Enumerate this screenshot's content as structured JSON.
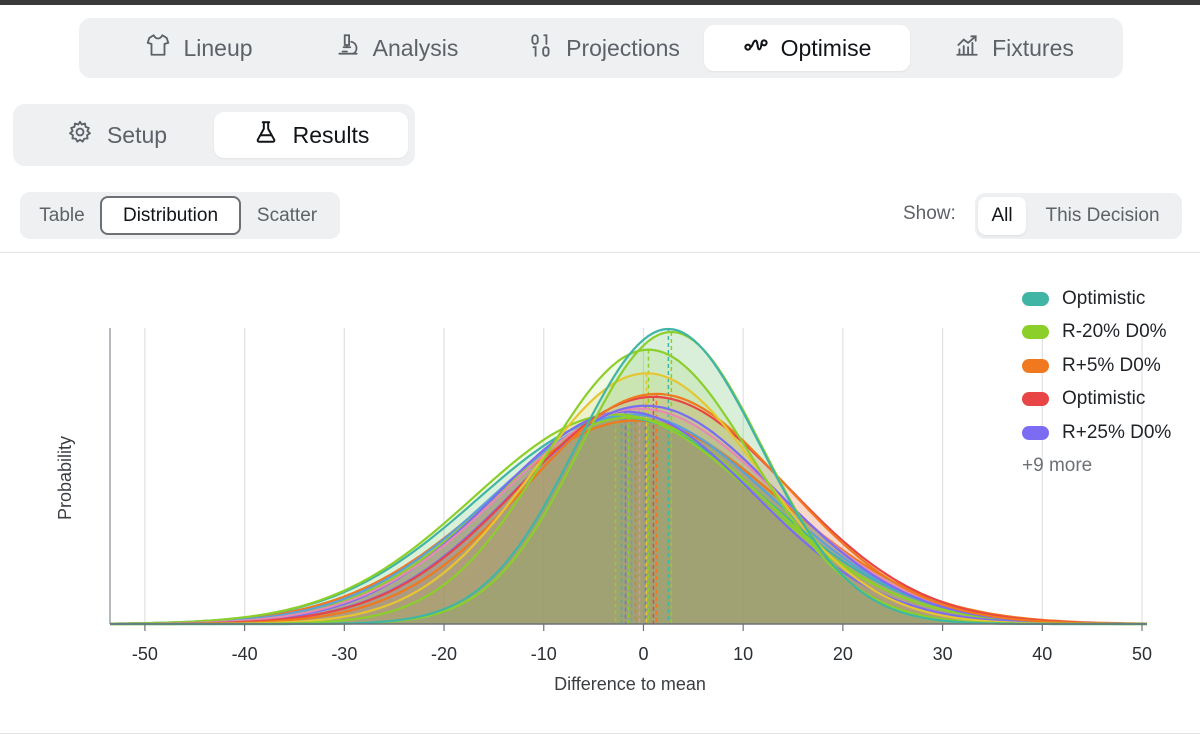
{
  "nav": {
    "tabs": [
      {
        "label": "Lineup",
        "icon": "shirt-icon",
        "active": false
      },
      {
        "label": "Analysis",
        "icon": "microscope-icon",
        "active": false
      },
      {
        "label": "Projections",
        "icon": "binary-icon",
        "active": false
      },
      {
        "label": "Optimise",
        "icon": "route-icon",
        "active": true
      },
      {
        "label": "Fixtures",
        "icon": "trend-chart-icon",
        "active": false
      }
    ]
  },
  "subnav": {
    "tabs": [
      {
        "label": "Setup",
        "icon": "gear-icon",
        "active": false
      },
      {
        "label": "Results",
        "icon": "flask-icon",
        "active": true
      }
    ]
  },
  "view": {
    "options": [
      {
        "label": "Table",
        "active": false
      },
      {
        "label": "Distribution",
        "active": true
      },
      {
        "label": "Scatter",
        "active": false
      }
    ]
  },
  "show": {
    "label": "Show:",
    "options": [
      {
        "label": "All",
        "active": true
      },
      {
        "label": "This Decision",
        "active": false
      }
    ]
  },
  "legend": {
    "items": [
      {
        "label": "Optimistic",
        "color": "#40b5a6"
      },
      {
        "label": "R-20% D0%",
        "color": "#8ccf2a"
      },
      {
        "label": "R+5% D0%",
        "color": "#f0781e"
      },
      {
        "label": "Optimistic",
        "color": "#e84646"
      },
      {
        "label": "R+25% D0%",
        "color": "#7b6cf2"
      }
    ],
    "more": "+9 more"
  },
  "chart_data": {
    "type": "area",
    "title": "",
    "xlabel": "Difference to mean",
    "ylabel": "Probability",
    "xlim": [
      -53.5,
      50.5
    ],
    "xticks": [
      -50,
      -40,
      -30,
      -20,
      -10,
      0,
      10,
      20,
      30,
      40,
      50
    ],
    "grid": "vertical",
    "legend_position": "top-right",
    "fill_color": "#9a9870",
    "series": [
      {
        "name": "Optimistic",
        "color": "#40b5a6",
        "mean": 2.5,
        "sigma": 9.2,
        "peak": 1.0
      },
      {
        "name": "R-20% D0%",
        "color": "#8ccf2a",
        "mean": 2.8,
        "sigma": 9.1,
        "peak": 0.99
      },
      {
        "color": "#8ccf2a",
        "mean": 0.5,
        "sigma": 10.4,
        "peak": 0.93
      },
      {
        "color": "#e6c531",
        "mean": 0.3,
        "sigma": 11.4,
        "peak": 0.85
      },
      {
        "name": "R+5% D0%",
        "color": "#f0781e",
        "mean": 1.3,
        "sigma": 12.9,
        "peak": 0.78
      },
      {
        "name": "Optimistic",
        "color": "#e84646",
        "mean": 1.0,
        "sigma": 13.4,
        "peak": 0.77
      },
      {
        "name": "R+25% D0%",
        "color": "#7b6cf2",
        "mean": 0.2,
        "sigma": 13.2,
        "peak": 0.74
      },
      {
        "color": "#5aa2d8",
        "mean": -1.2,
        "sigma": 14.0,
        "peak": 0.71
      },
      {
        "color": "#e68ab0",
        "mean": -0.4,
        "sigma": 13.8,
        "peak": 0.73
      },
      {
        "color": "#40b5a6",
        "mean": -2.2,
        "sigma": 14.4,
        "peak": 0.7
      },
      {
        "color": "#8ccf2a",
        "mean": -2.8,
        "sigma": 14.2,
        "peak": 0.71
      },
      {
        "color": "#8ccf2a",
        "mean": -1.5,
        "sigma": 13.6,
        "peak": 0.7
      },
      {
        "color": "#f0781e",
        "mean": -0.8,
        "sigma": 14.6,
        "peak": 0.69
      },
      {
        "color": "#7b6cf2",
        "mean": -1.8,
        "sigma": 13.0,
        "peak": 0.72
      }
    ]
  }
}
